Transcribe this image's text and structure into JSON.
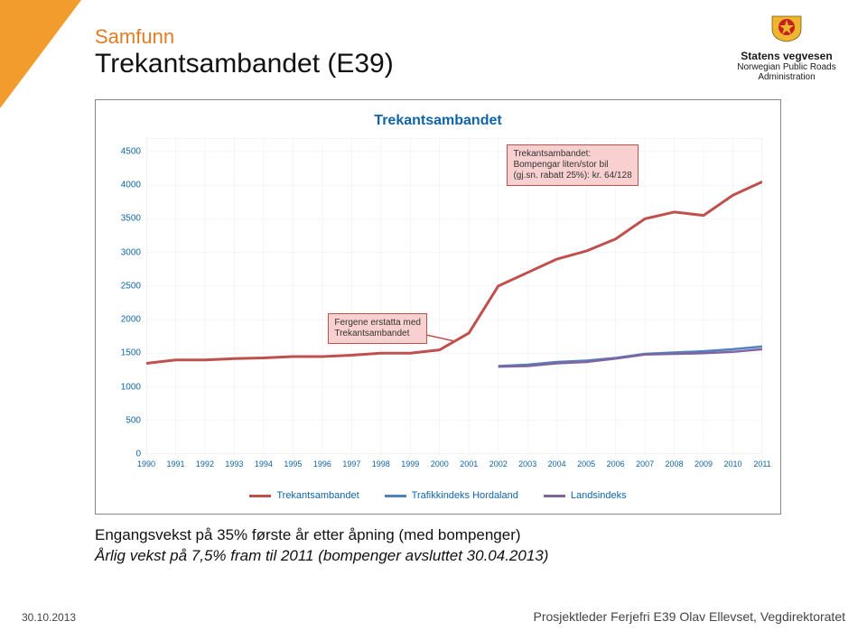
{
  "corner_color": "#f39c2e",
  "logo": {
    "shield_gold": "#f0b52e",
    "shield_red": "#c52020",
    "brand": "Statens vegvesen",
    "sub": "Norwegian Public Roads Administration"
  },
  "title": {
    "samfunn": "Samfunn",
    "main": "Trekantsambandet (E39)"
  },
  "chart": {
    "title": "Trekantsambandet",
    "title_fontsize": 16,
    "title_color": "#1064a5",
    "background_color": "#ffffff",
    "border_color": "#888888",
    "grid_color": "#d9d9d9",
    "axis_label_color": "#1064a5",
    "ylim": [
      0,
      4700
    ],
    "ytick_step": 500,
    "yticks": [
      0,
      500,
      1000,
      1500,
      2000,
      2500,
      3000,
      3500,
      4000,
      4500
    ],
    "xvalues": [
      1990,
      1991,
      1992,
      1993,
      1994,
      1995,
      1996,
      1997,
      1998,
      1999,
      2000,
      2001,
      2002,
      2003,
      2004,
      2005,
      2006,
      2007,
      2008,
      2009,
      2010,
      2011
    ],
    "series": [
      {
        "name": "Trekantsambandet",
        "color": "#c0504d",
        "line_width": 3,
        "y": [
          1350,
          1400,
          1400,
          1420,
          1430,
          1450,
          1450,
          1470,
          1500,
          1500,
          1550,
          1800,
          2500,
          2700,
          2900,
          3020,
          3200,
          3500,
          3600,
          3550,
          3850,
          4050
        ]
      },
      {
        "name": "Trafikkindeks Hordaland",
        "color": "#4f81bd",
        "line_width": 2.5,
        "y": [
          null,
          null,
          null,
          null,
          null,
          null,
          null,
          null,
          null,
          null,
          null,
          null,
          1310,
          1330,
          1370,
          1390,
          1430,
          1490,
          1510,
          1530,
          1560,
          1600
        ]
      },
      {
        "name": "Landsindeks",
        "color": "#8064a2",
        "line_width": 2.5,
        "y": [
          null,
          null,
          null,
          null,
          null,
          null,
          null,
          null,
          null,
          null,
          null,
          null,
          1300,
          1310,
          1350,
          1370,
          1420,
          1480,
          1490,
          1500,
          1520,
          1560
        ]
      }
    ],
    "callouts": [
      {
        "text": "Fergene erstatta med\nTrekantsambandet",
        "data_x": 1996.2,
        "data_y": 2100,
        "pointer_to_x": 2000.5,
        "pointer_to_y": 1680
      },
      {
        "text": "Trekantsambandet:\nBompengar liten/stor bil\n(gj.sn. rabatt 25%): kr. 64/128",
        "data_x": 2002.3,
        "data_y": 4600,
        "pointer_to_x": null,
        "pointer_to_y": null
      }
    ],
    "legend_items": [
      {
        "label": "Trekantsambandet",
        "color": "#c0504d"
      },
      {
        "label": "Trafikkindeks Hordaland",
        "color": "#4f81bd"
      },
      {
        "label": "Landsindeks",
        "color": "#8064a2"
      }
    ]
  },
  "caption": {
    "line1": "Engangsvekst på 35% første år etter åpning (med bompenger)",
    "line2": "Årlig vekst på 7,5% fram til 2011 (bompenger avsluttet 30.04.2013)"
  },
  "footer": {
    "date": "30.10.2013",
    "right": "Prosjektleder Ferjefri E39 Olav Ellevset, Vegdirektoratet"
  }
}
